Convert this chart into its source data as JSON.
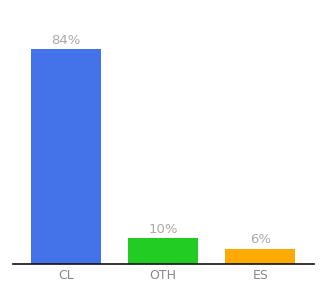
{
  "categories": [
    "CL",
    "OTH",
    "ES"
  ],
  "values": [
    84,
    10,
    6
  ],
  "bar_colors": [
    "#4472e8",
    "#22cc22",
    "#ffaa00"
  ],
  "labels": [
    "84%",
    "10%",
    "6%"
  ],
  "ylim": [
    0,
    95
  ],
  "background_color": "#ffffff",
  "label_color": "#aaaaaa",
  "label_fontsize": 9.5,
  "tick_fontsize": 9,
  "bar_width": 0.72
}
